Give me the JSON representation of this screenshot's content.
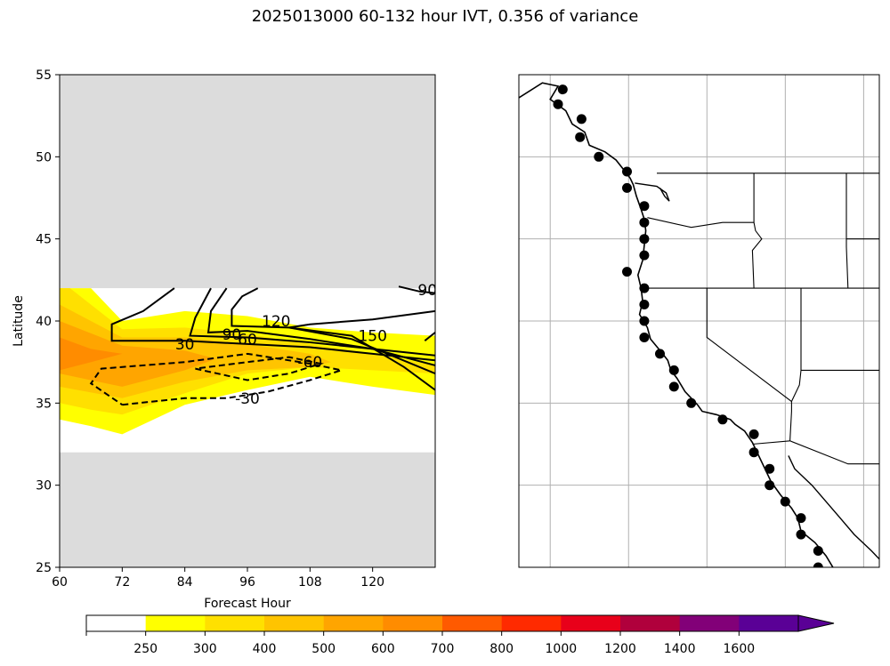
{
  "figure_title": "2025013000 60-132 hour IVT, 0.356 of variance",
  "colors": {
    "no_data": "#dcdcdc",
    "axes": "#000000",
    "grid": "#b0b0b0",
    "coast": "#000000"
  },
  "chart_data": [
    {
      "type": "heatmap",
      "panel": "left",
      "xlabel": "Forecast Hour",
      "ylabel": "Latitude",
      "xlim": [
        60,
        132
      ],
      "ylim": [
        25,
        55
      ],
      "xticks": [
        "60",
        "72",
        "84",
        "96",
        "108",
        "120"
      ],
      "yticks": [
        "25",
        "30",
        "35",
        "40",
        "45",
        "50",
        "55"
      ],
      "data_lat_range": [
        32,
        42
      ],
      "filled_regions": [
        {
          "level": "250-300",
          "color": "#ffff00",
          "points": [
            [
              60,
              42
            ],
            [
              66,
              42
            ],
            [
              72,
              40
            ],
            [
              84,
              40.6
            ],
            [
              96,
              40.3
            ],
            [
              108,
              39.6
            ],
            [
              120,
              39.3
            ],
            [
              132,
              39.1
            ],
            [
              132,
              35.5
            ],
            [
              120,
              36
            ],
            [
              108,
              36.6
            ],
            [
              96,
              35.8
            ],
            [
              84,
              34.9
            ],
            [
              72,
              33.1
            ],
            [
              66,
              33.6
            ],
            [
              60,
              34
            ]
          ]
        },
        {
          "level": "300-400",
          "color": "#ffe000",
          "points": [
            [
              60,
              42
            ],
            [
              62,
              42
            ],
            [
              72,
              39.5
            ],
            [
              84,
              39.6
            ],
            [
              96,
              39.2
            ],
            [
              108,
              38.6
            ],
            [
              120,
              38
            ],
            [
              132,
              37.3
            ],
            [
              132,
              36.8
            ],
            [
              120,
              37
            ],
            [
              108,
              37.2
            ],
            [
              96,
              36.8
            ],
            [
              84,
              35.6
            ],
            [
              72,
              34.3
            ],
            [
              66,
              34.6
            ],
            [
              60,
              35
            ]
          ]
        },
        {
          "level": "400-500",
          "color": "#ffc400",
          "points": [
            [
              60,
              41
            ],
            [
              72,
              39
            ],
            [
              84,
              39
            ],
            [
              96,
              38.6
            ],
            [
              108,
              38
            ],
            [
              112,
              37.5
            ],
            [
              108,
              37.2
            ],
            [
              96,
              37
            ],
            [
              84,
              36.3
            ],
            [
              72,
              35.3
            ],
            [
              60,
              36
            ]
          ]
        },
        {
          "level": "500-600",
          "color": "#ffa500",
          "points": [
            [
              60,
              40
            ],
            [
              72,
              38.5
            ],
            [
              84,
              38.2
            ],
            [
              90,
              37.7
            ],
            [
              84,
              37
            ],
            [
              72,
              36
            ],
            [
              60,
              36.8
            ]
          ]
        },
        {
          "level": "600-700",
          "color": "#ff8c00",
          "points": [
            [
              60,
              39
            ],
            [
              66,
              38.3
            ],
            [
              72,
              38
            ],
            [
              66,
              37.5
            ],
            [
              60,
              37
            ]
          ]
        }
      ],
      "contours": [
        {
          "label": "30",
          "style": "solid",
          "label_at": [
            84,
            38.6
          ],
          "points": [
            [
              82,
              42
            ],
            [
              76,
              40.6
            ],
            [
              70,
              39.8
            ],
            [
              70,
              38.8
            ],
            [
              84,
              38.8
            ],
            [
              96,
              38.6
            ],
            [
              108,
              38.4
            ],
            [
              120,
              38
            ],
            [
              132,
              37.6
            ]
          ]
        },
        {
          "label": "60",
          "style": "solid",
          "label_at": [
            96,
            38.9
          ],
          "points": [
            [
              89,
              42
            ],
            [
              86,
              40.2
            ],
            [
              85,
              39.1
            ],
            [
              96,
              39
            ],
            [
              108,
              38.7
            ],
            [
              120,
              38.3
            ],
            [
              132,
              37.9
            ]
          ]
        },
        {
          "label": "90",
          "style": "solid",
          "label_at": [
            93,
            39.2
          ],
          "points": [
            [
              92,
              42
            ],
            [
              89,
              40.6
            ],
            [
              88.5,
              39.3
            ],
            [
              96,
              39.4
            ],
            [
              108,
              38.9
            ],
            [
              120,
              38.3
            ],
            [
              132,
              37.3
            ]
          ]
        },
        {
          "label": "120",
          "style": "solid",
          "label_at": [
            101.5,
            40
          ],
          "points": [
            [
              98,
              42
            ],
            [
              95,
              41.5
            ],
            [
              93,
              40.7
            ],
            [
              93,
              39.7
            ],
            [
              104,
              39.6
            ],
            [
              116,
              38.9
            ],
            [
              132,
              36.8
            ]
          ]
        },
        {
          "label": "150",
          "style": "solid",
          "label_at": [
            120,
            39.1
          ],
          "points": [
            [
              132,
              40.6
            ],
            [
              120,
              40.1
            ],
            [
              108,
              39.8
            ],
            [
              104,
              39.6
            ],
            [
              116,
              39.1
            ],
            [
              126,
              37.2
            ],
            [
              132,
              35.8
            ]
          ]
        },
        {
          "label": "90",
          "style": "solid",
          "label_at": [
            130.5,
            41.9
          ],
          "points": [
            [
              125,
              42.1
            ],
            [
              129,
              41.8
            ],
            [
              132,
              41.7
            ]
          ]
        },
        {
          "label": "",
          "style": "solid",
          "label_at": null,
          "points": [
            [
              132,
              39.3
            ],
            [
              130,
              38.8
            ]
          ]
        },
        {
          "label": "-30",
          "style": "dashed",
          "label_at": [
            96,
            35.3
          ],
          "points": [
            [
              72,
              34.9
            ],
            [
              84,
              35.3
            ],
            [
              92,
              35.3
            ],
            [
              100,
              35.7
            ],
            [
              108,
              36.4
            ],
            [
              114,
              37
            ],
            [
              108,
              37.4
            ],
            [
              96,
              38
            ],
            [
              84,
              37.5
            ],
            [
              68,
              37.1
            ],
            [
              66,
              36.2
            ],
            [
              72,
              34.9
            ]
          ]
        },
        {
          "label": "-60",
          "style": "dashed",
          "label_at": [
            108,
            37.5
          ],
          "points": [
            [
              86,
              37.1
            ],
            [
              96,
              36.4
            ],
            [
              104,
              36.8
            ],
            [
              110,
              37.4
            ],
            [
              104,
              37.8
            ],
            [
              96,
              37.5
            ],
            [
              86,
              37.1
            ]
          ]
        }
      ]
    },
    {
      "type": "map",
      "panel": "right",
      "region": "US West Coast",
      "extent_lon": [
        -132,
        -109
      ],
      "extent_lat": [
        25,
        55
      ],
      "gridlines_lon": [
        -130,
        -125,
        -120,
        -115,
        -110
      ],
      "gridlines_lat": [
        25,
        30,
        35,
        40,
        45,
        50,
        55
      ],
      "gridlines": true,
      "coast_points_lon_lat": [
        [
          -129.2,
          54.1
        ],
        [
          -129.5,
          53.2
        ],
        [
          -128.0,
          52.3
        ],
        [
          -128.1,
          51.2
        ],
        [
          -126.9,
          50.0
        ],
        [
          -125.1,
          49.1
        ],
        [
          -125.1,
          48.1
        ],
        [
          -124.0,
          47.0
        ],
        [
          -124.0,
          46.0
        ],
        [
          -124.0,
          45.0
        ],
        [
          -124.0,
          44.0
        ],
        [
          -125.1,
          43.0
        ],
        [
          -124.0,
          42.0
        ],
        [
          -124.0,
          41.0
        ],
        [
          -124.0,
          40.0
        ],
        [
          -124.0,
          39.0
        ],
        [
          -123.0,
          38.0
        ],
        [
          -122.1,
          37.0
        ],
        [
          -122.1,
          36.0
        ],
        [
          -121.0,
          35.0
        ],
        [
          -119.0,
          34.0
        ],
        [
          -117.0,
          33.1
        ],
        [
          -117.0,
          32.0
        ],
        [
          -116.0,
          31.0
        ],
        [
          -116.0,
          30.0
        ],
        [
          -115.0,
          29.0
        ],
        [
          -114.0,
          28.0
        ],
        [
          -114.0,
          27.0
        ],
        [
          -112.9,
          26.0
        ],
        [
          -112.9,
          25.0
        ]
      ]
    },
    {
      "type": "colorbar",
      "ticks": [
        "250",
        "300",
        "400",
        "500",
        "600",
        "700",
        "800",
        "1000",
        "1200",
        "1400",
        "1600"
      ],
      "colors": [
        "#ffffff",
        "#ffff00",
        "#ffe000",
        "#ffc400",
        "#ffa500",
        "#ff8c00",
        "#ff5a00",
        "#ff2a00",
        "#e8001a",
        "#b0003c",
        "#820078",
        "#5a0096"
      ],
      "extend": "max",
      "extend_color": "#5a0096"
    }
  ]
}
